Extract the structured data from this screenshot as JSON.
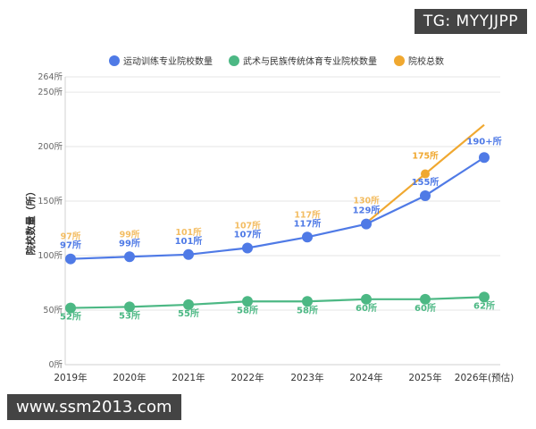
{
  "watermark_top": "TG: MYYJJPP",
  "watermark_bottom": "www.ssm2013.com",
  "chart_data": {
    "type": "line",
    "title": "",
    "xlabel": "",
    "ylabel": "院校数量（所）",
    "ylim": [
      0,
      264
    ],
    "yticks": [
      0,
      50,
      100,
      150,
      200,
      250,
      264
    ],
    "ytick_labels": [
      "0所",
      "50所",
      "100所",
      "150所",
      "200所",
      "250所",
      "264所"
    ],
    "grid": true,
    "legend_position": "top",
    "categories": [
      "2019年",
      "2020年",
      "2021年",
      "2022年",
      "2023年",
      "2024年",
      "2025年",
      "2026年(预估)"
    ],
    "series": [
      {
        "name": "运动训练专业院校数量",
        "color": "#4f7ae6",
        "values": [
          97,
          99,
          101,
          107,
          117,
          129,
          155,
          190
        ],
        "labels": [
          "97所",
          "99所",
          "101所",
          "107所",
          "117所",
          "129所",
          "155所",
          "190+所"
        ]
      },
      {
        "name": "武术与民族传统体育专业院校数量",
        "color": "#4cb884",
        "values": [
          52,
          53,
          55,
          58,
          58,
          60,
          60,
          62
        ],
        "labels": [
          "52所",
          "53所",
          "55所",
          "58所",
          "58所",
          "60所",
          "60所",
          "62所"
        ]
      },
      {
        "name": "院校总数",
        "color": "#f0a830",
        "values": [
          97,
          99,
          101,
          107,
          117,
          130,
          175,
          220
        ],
        "labels": [
          "97所",
          "99所",
          "101所",
          "107所",
          "117所",
          "130所",
          "175所",
          ""
        ]
      }
    ]
  }
}
